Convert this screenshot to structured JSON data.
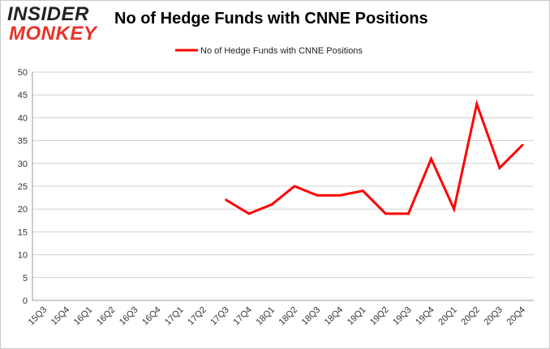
{
  "logo": {
    "line1": "INSIDER",
    "line2": "MONKEY",
    "accent": "#e8322a"
  },
  "chart_data": {
    "type": "line",
    "title": "No of Hedge Funds with CNNE Positions",
    "xlabel": "",
    "ylabel": "",
    "categories": [
      "15Q3",
      "15Q4",
      "16Q1",
      "16Q2",
      "16Q3",
      "16Q4",
      "17Q1",
      "17Q2",
      "17Q3",
      "17Q4",
      "18Q1",
      "18Q2",
      "18Q3",
      "18Q4",
      "19Q1",
      "19Q2",
      "19Q3",
      "19Q4",
      "20Q1",
      "20Q2",
      "20Q3",
      "20Q4"
    ],
    "series": [
      {
        "name": "No of Hedge Funds with CNNE Positions",
        "color": "#ff0000",
        "values": [
          null,
          null,
          null,
          null,
          null,
          null,
          null,
          null,
          22,
          19,
          21,
          25,
          23,
          23,
          24,
          19,
          19,
          31,
          20,
          43,
          29,
          34
        ]
      }
    ],
    "ylim": [
      0,
      50
    ],
    "yticks": [
      0,
      5,
      10,
      15,
      20,
      25,
      30,
      35,
      40,
      45,
      50
    ],
    "grid": true,
    "legend": "top-center"
  }
}
